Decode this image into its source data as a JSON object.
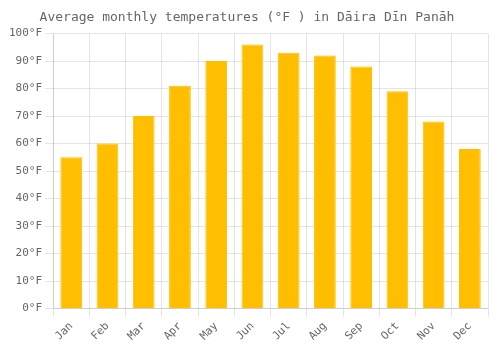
{
  "chart_data": {
    "type": "bar",
    "title": "Average monthly temperatures (°F ) in Dāira Dīn Panāh",
    "categories": [
      "Jan",
      "Feb",
      "Mar",
      "Apr",
      "May",
      "Jun",
      "Jul",
      "Aug",
      "Sep",
      "Oct",
      "Nov",
      "Dec"
    ],
    "values": [
      55,
      60,
      70,
      81,
      90,
      96,
      93,
      92,
      88,
      79,
      68,
      58
    ],
    "color": "#FFBF00",
    "ylim": [
      0,
      100
    ],
    "yticks": [
      {
        "value": 0,
        "label": "0°F"
      },
      {
        "value": 10,
        "label": "10°F"
      },
      {
        "value": 20,
        "label": "20°F"
      },
      {
        "value": 30,
        "label": "30°F"
      },
      {
        "value": 40,
        "label": "40°F"
      },
      {
        "value": 50,
        "label": "50°F"
      },
      {
        "value": 60,
        "label": "60°F"
      },
      {
        "value": 70,
        "label": "70°F"
      },
      {
        "value": 80,
        "label": "80°F"
      },
      {
        "value": 90,
        "label": "90°F"
      },
      {
        "value": 100,
        "label": "100°F"
      }
    ],
    "grid": true
  }
}
